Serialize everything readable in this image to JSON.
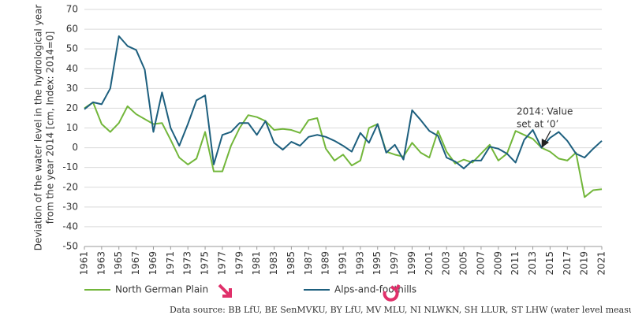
{
  "chart_data": {
    "type": "line",
    "y_label": [
      "Deviation of the water level in the hydrological year",
      "from the year 2014 [cm, Index: 2014=0]"
    ],
    "x": [
      1961,
      1962,
      1963,
      1964,
      1965,
      1966,
      1967,
      1968,
      1969,
      1970,
      1971,
      1972,
      1973,
      1974,
      1975,
      1976,
      1977,
      1978,
      1979,
      1980,
      1981,
      1982,
      1983,
      1984,
      1985,
      1986,
      1987,
      1988,
      1989,
      1990,
      1991,
      1992,
      1993,
      1994,
      1995,
      1996,
      1997,
      1998,
      1999,
      2000,
      2001,
      2002,
      2003,
      2004,
      2005,
      2006,
      2007,
      2008,
      2009,
      2010,
      2011,
      2012,
      2013,
      2014,
      2015,
      2016,
      2017,
      2018,
      2019,
      2020,
      2021
    ],
    "series": [
      {
        "name": "North German Plain",
        "color": "#72b63a",
        "values": [
          20,
          23,
          12,
          8,
          12.5,
          21,
          17,
          14.5,
          12,
          12.5,
          4,
          -5,
          -8.5,
          -5.5,
          8,
          -12,
          -12,
          1,
          10,
          16.5,
          15.5,
          13.5,
          9,
          9.5,
          9,
          7.5,
          14,
          15,
          -0.5,
          -6.5,
          -3.5,
          -9,
          -6.5,
          10,
          12,
          -2,
          -3.5,
          -4.5,
          2.5,
          -2.5,
          -5,
          8.5,
          -2,
          -8,
          -6,
          -7.5,
          -3,
          1.5,
          -6.5,
          -3,
          8.5,
          6.5,
          4.5,
          0,
          -2,
          -5.5,
          -6.5,
          -2.5,
          -25,
          -21.5,
          -21
        ]
      },
      {
        "name": "Alps-and-foothills",
        "color": "#1d5f7e",
        "values": [
          19.5,
          23,
          22,
          30,
          56.5,
          51.5,
          49.5,
          39.5,
          8,
          28,
          10,
          1,
          12,
          24,
          26.5,
          -8.5,
          6.5,
          8,
          12.5,
          12.5,
          6.5,
          13.5,
          2.5,
          -1,
          3,
          1,
          5.5,
          6.5,
          5.5,
          3.5,
          1,
          -2,
          7.5,
          2.5,
          12,
          -2.5,
          1.5,
          -6,
          19,
          14,
          8.5,
          6,
          -5,
          -7,
          -10.5,
          -6.5,
          -6.5,
          0.5,
          -0.5,
          -3,
          -7.5,
          4,
          9,
          0,
          5,
          8,
          3.5,
          -3,
          -5,
          -0.5,
          3.5
        ]
      }
    ],
    "xlim": [
      1961,
      2021
    ],
    "xticks": [
      1961,
      1963,
      1965,
      1967,
      1969,
      1971,
      1973,
      1975,
      1977,
      1979,
      1981,
      1983,
      1985,
      1987,
      1989,
      1991,
      1993,
      1995,
      1997,
      1999,
      2001,
      2003,
      2005,
      2007,
      2009,
      2011,
      2013,
      2015,
      2017,
      2019,
      2021
    ],
    "ylim": [
      -50,
      70
    ],
    "yticks": [
      -50,
      -40,
      -30,
      -20,
      -10,
      0,
      10,
      20,
      30,
      40,
      50,
      60,
      70
    ],
    "grid": true,
    "annotation": [
      "2014: Value",
      "set at ‘0’"
    ],
    "source": "Data source: BB LfU, BE SenMVKU, BY LfU, MV MLU, NI NLWKN, SH LLUR, ST LHW (water level measurements)"
  }
}
